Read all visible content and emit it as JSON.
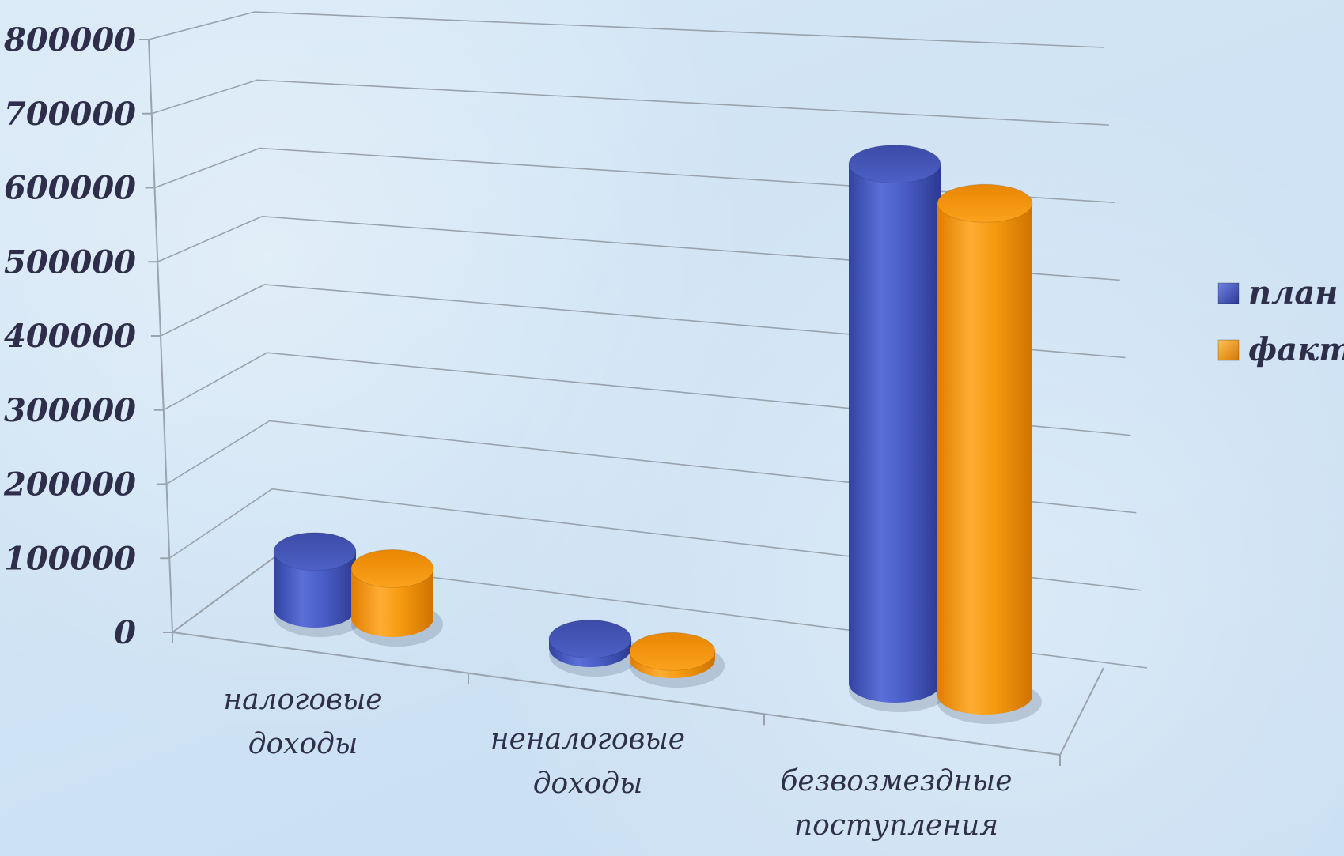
{
  "chart_data": {
    "type": "bar",
    "style": "3d-cylinder",
    "categories": [
      "налоговые доходы",
      "неналоговые доходы",
      "безвозмездные поступления"
    ],
    "category_lines": [
      [
        "налоговые",
        "доходы"
      ],
      [
        "неналоговые",
        "доходы"
      ],
      [
        "безвозмездные",
        "поступления"
      ]
    ],
    "series": [
      {
        "name": "план",
        "values": [
          75000,
          12000,
          683000
        ],
        "color": "#3b4fb8"
      },
      {
        "name": "факт",
        "values": [
          65000,
          10000,
          647000
        ],
        "color": "#f29100"
      }
    ],
    "ylim": [
      0,
      800000
    ],
    "yticks": [
      "0",
      "100000",
      "200000",
      "300000",
      "400000",
      "500000",
      "600000",
      "700000",
      "800000"
    ],
    "grid": true,
    "legend_position": "right"
  }
}
